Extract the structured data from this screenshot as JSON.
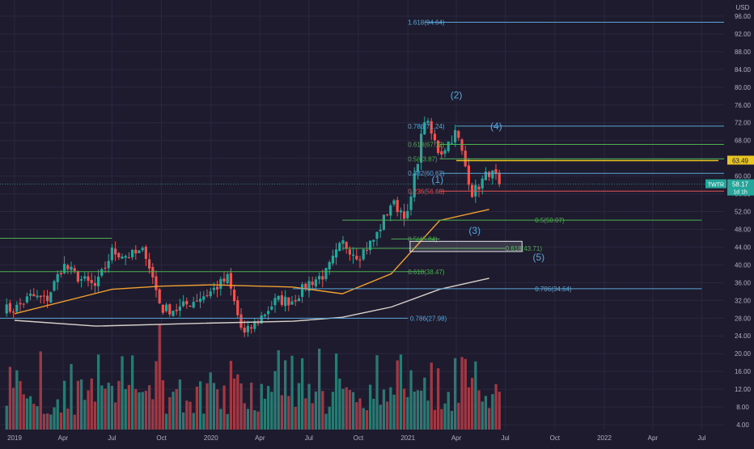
{
  "colors": {
    "background": "#1e1b2e",
    "up": "#26a69a",
    "down": "#ef5350",
    "up_volume": "#2a7a73",
    "down_volume": "#9e3a45",
    "ma_short": "#f0a030",
    "ma_long": "#d8d0c8",
    "fib_blue": "#5ba6d6",
    "fib_green": "#4caf50",
    "fib_red": "#e05555",
    "fib_yellow": "#e8c520",
    "axis_text": "#b0b0c0"
  },
  "axis": {
    "currency": "USD",
    "price_ticks": [
      "96.00",
      "92.00",
      "88.00",
      "84.00",
      "80.00",
      "76.00",
      "72.00",
      "68.00",
      "64.00",
      "60.00",
      "56.00",
      "52.00",
      "48.00",
      "44.00",
      "40.00",
      "36.00",
      "32.00",
      "28.00",
      "24.00",
      "20.00",
      "16.00",
      "12.00",
      "8.00",
      "4.00"
    ],
    "time_ticks": [
      "2019",
      "Apr",
      "Jul",
      "Oct",
      "2020",
      "Apr",
      "Jul",
      "Oct",
      "2021",
      "Apr",
      "Jul",
      "Oct",
      "2022",
      "Apr",
      "Jul"
    ]
  },
  "price_tags": {
    "symbol": "TWTR",
    "last_price": "58.17",
    "time_left": "1d 1h",
    "level_price": "63.49"
  },
  "chart_data": {
    "type": "candlestick",
    "symbol": "TWTR",
    "timeframe": "weekly",
    "y_axis": {
      "unit": "USD",
      "range": [
        3,
        98
      ]
    },
    "x_axis": {
      "start": "2019-01",
      "end": "2022-08"
    },
    "price_path": [
      [
        "2019-01",
        30
      ],
      [
        "2019-02",
        33
      ],
      [
        "2019-03",
        32
      ],
      [
        "2019-04",
        40
      ],
      [
        "2019-05",
        37
      ],
      [
        "2019-06",
        35
      ],
      [
        "2019-07",
        43
      ],
      [
        "2019-08",
        42
      ],
      [
        "2019-09",
        43
      ],
      [
        "2019-10",
        30
      ],
      [
        "2019-11",
        30
      ],
      [
        "2019-12",
        32
      ],
      [
        "2020-01",
        34
      ],
      [
        "2020-02",
        37
      ],
      [
        "2020-03",
        24
      ],
      [
        "2020-04",
        28
      ],
      [
        "2020-05",
        32
      ],
      [
        "2020-06",
        32
      ],
      [
        "2020-07",
        36
      ],
      [
        "2020-08",
        38
      ],
      [
        "2020-09",
        45
      ],
      [
        "2020-10",
        42
      ],
      [
        "2020-11",
        46
      ],
      [
        "2020-12",
        54
      ],
      [
        "2021-01",
        51
      ],
      [
        "2021-02",
        73
      ],
      [
        "2021-03",
        65
      ],
      [
        "2021-04",
        70
      ],
      [
        "2021-05",
        56
      ],
      [
        "2021-06",
        61
      ],
      [
        "2021-06-25",
        58.17
      ]
    ],
    "moving_averages": [
      {
        "name": "MA short",
        "color": "#f0a030",
        "points": [
          [
            "2019-01",
            29
          ],
          [
            "2019-07",
            34.5
          ],
          [
            "2019-10",
            35.2
          ],
          [
            "2020-01",
            35.5
          ],
          [
            "2020-06",
            35
          ],
          [
            "2020-09",
            33.5
          ],
          [
            "2020-12",
            38
          ],
          [
            "2021-03",
            50
          ],
          [
            "2021-06",
            52.5
          ]
        ]
      },
      {
        "name": "MA long",
        "color": "#d8d0c8",
        "points": [
          [
            "2019-01",
            27.5
          ],
          [
            "2019-06",
            26.2
          ],
          [
            "2019-12",
            26.8
          ],
          [
            "2020-06",
            27.3
          ],
          [
            "2020-09",
            28.2
          ],
          [
            "2020-12",
            30.5
          ],
          [
            "2021-03",
            34.5
          ],
          [
            "2021-06",
            37
          ]
        ]
      }
    ],
    "fib_levels": [
      {
        "label": "1.618(94.64)",
        "price": 94.64,
        "color": "#5ba6d6",
        "start": "2021-02",
        "label_at": "2021-01",
        "extends": true
      },
      {
        "label": "0.786(71.24)",
        "price": 71.24,
        "color": "#5ba6d6",
        "start": "2021-04",
        "label_at": "2021-01",
        "extends": true
      },
      {
        "label": "0.618(67.12)",
        "price": 67.12,
        "color": "#4caf50",
        "start": "2021-03",
        "label_at": "2021-01",
        "extends": true
      },
      {
        "label": "0.5(63.87)",
        "price": 63.87,
        "color": "#4caf50",
        "start": "2021-03",
        "label_at": "2021-01",
        "extends": true
      },
      {
        "label": "0.382(60.62)",
        "price": 60.62,
        "color": "#5ba6d6",
        "start": "2021-03",
        "label_at": "2021-01",
        "extends": true
      },
      {
        "label": "0.236(56.60)",
        "price": 56.6,
        "color": "#e05555",
        "start": "2021-03",
        "label_at": "2021-01",
        "extends": true
      },
      {
        "label": "0.5(50.07)",
        "price": 50.07,
        "color": "#4caf50",
        "start": "2020-09",
        "label_at": "2021-08-25",
        "extends": false,
        "end": "2022-07"
      },
      {
        "label": "0.5(45.84)",
        "price": 45.84,
        "color": "#4caf50",
        "start": "2020-12",
        "label_at": "2021-01",
        "extends": false,
        "end": "2021-03"
      },
      {
        "label": "0.618(43.71)",
        "price": 43.71,
        "color": "#4caf50",
        "start": "2020-09",
        "label_at": "2021-07-01",
        "extends": false,
        "end": "2021-07"
      },
      {
        "label": "0.618(38.47)",
        "price": 38.47,
        "color": "#4caf50",
        "start": "2018-12",
        "label_at": "2021-01",
        "extends": false,
        "end": "2021-02"
      },
      {
        "label": "0.786(34.64)",
        "price": 34.64,
        "color": "#5ba6d6",
        "start": "2020-06",
        "label_at": "2021-08-25",
        "extends": false,
        "end": "2022-07"
      },
      {
        "label": "0.786(27.98)",
        "price": 27.98,
        "color": "#5ba6d6",
        "start": "2018-12",
        "label_at": "2021-01-05",
        "extends": false,
        "end": "2021-01"
      }
    ],
    "horizontal_lines": [
      {
        "price": 46,
        "color": "#4caf50",
        "start": "2018-12",
        "end": "2019-07"
      },
      {
        "price": 63.49,
        "color": "#e8c520",
        "start": "2021-04",
        "end": "2022-08"
      }
    ],
    "box": {
      "from": "2021-01-05",
      "to": "2021-08-01",
      "top": 45.3,
      "bottom": 43
    },
    "wave_labels": [
      {
        "text": "(1)",
        "date": "2021-02-25",
        "price": 58.5
      },
      {
        "text": "(2)",
        "date": "2021-04-01",
        "price": 77.5
      },
      {
        "text": "(3)",
        "date": "2021-05-05",
        "price": 47
      },
      {
        "text": "(4)",
        "date": "2021-06-14",
        "price": 70.5
      },
      {
        "text": "(5)",
        "date": "2021-09-01",
        "price": 41
      }
    ],
    "volume": {
      "unit": "M",
      "axis_max": 32
    }
  }
}
